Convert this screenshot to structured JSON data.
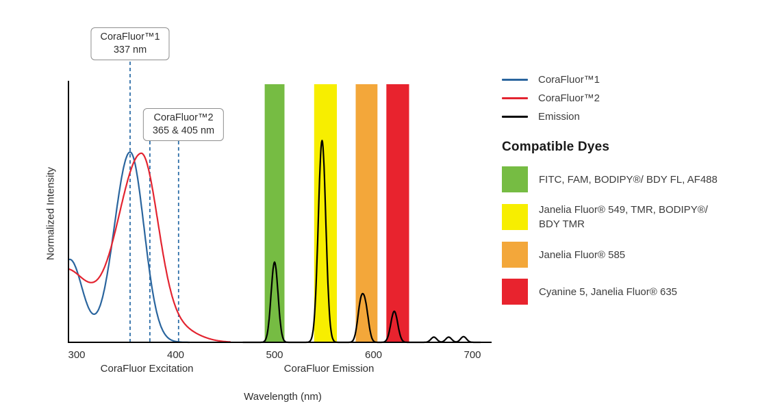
{
  "colors": {
    "corafluor1_blue": "#2a659e",
    "corafluor2_red": "#e32430",
    "emission_black": "#000000",
    "band_green": "#76bc43",
    "band_yellow": "#f7ee00",
    "band_orange": "#f3a73a",
    "band_red": "#e8232e",
    "marker_dash_blue": "#2d6ea8"
  },
  "chart_data": {
    "type": "line",
    "title": "",
    "xlabel": "Wavelength (nm)",
    "ylabel": "Normalized Intensity",
    "x_ticks": [
      300,
      400,
      500,
      600,
      700
    ],
    "x_range_nm": [
      292,
      719
    ],
    "ylim": [
      0,
      1
    ],
    "grid": false,
    "section_labels": [
      {
        "text": "CoraFluor Excitation",
        "center_nm": 371
      },
      {
        "text": "CoraFluor Emission",
        "center_nm": 555
      }
    ],
    "callouts": [
      {
        "lines": [
          "CoraFluor™1",
          "337 nm"
        ]
      },
      {
        "lines": [
          "CoraFluor™2",
          "365 & 405 nm"
        ]
      }
    ],
    "excitation_markers_nm": [
      354,
      374,
      403
    ],
    "filter_bands": [
      {
        "name": "green",
        "from_nm": 490,
        "to_nm": 510,
        "color_key": "band_green"
      },
      {
        "name": "yellow",
        "from_nm": 540,
        "to_nm": 563,
        "color_key": "band_yellow"
      },
      {
        "name": "orange",
        "from_nm": 582,
        "to_nm": 604,
        "color_key": "band_orange"
      },
      {
        "name": "red",
        "from_nm": 613,
        "to_nm": 636,
        "color_key": "band_red"
      }
    ],
    "series": [
      {
        "name": "CoraFluor™1 excitation",
        "color_key": "corafluor1_blue",
        "draw_range_nm": [
          292,
          414
        ],
        "peaks": [
          {
            "nm": 354,
            "intensity": 0.74
          }
        ],
        "components": [
          {
            "c": 293,
            "a": 0.32,
            "s": 13
          },
          {
            "c": 354,
            "a": 0.735,
            "sl": 16,
            "sr": 14
          }
        ]
      },
      {
        "name": "CoraFluor™2 excitation",
        "color_key": "corafluor2_red",
        "draw_range_nm": [
          292,
          455
        ],
        "peaks": [
          {
            "nm": 365,
            "intensity": 0.72
          }
        ],
        "components": [
          {
            "c": 288,
            "a": 0.28,
            "s": 24
          },
          {
            "c": 365,
            "a": 0.72,
            "sl": 24,
            "sr": 17
          },
          {
            "c": 402,
            "a": 0.05,
            "s": 20
          }
        ]
      },
      {
        "name": "Emission",
        "color_key": "emission_black",
        "draw_range_nm": [
          468,
          708
        ],
        "peaks": [
          {
            "nm": 500,
            "intensity": 0.31
          },
          {
            "nm": 548,
            "intensity": 0.78
          },
          {
            "nm": 590,
            "intensity": 0.19
          },
          {
            "nm": 621,
            "intensity": 0.12
          }
        ],
        "components": [
          {
            "c": 500,
            "a": 0.31,
            "s": 3.5
          },
          {
            "c": 548,
            "a": 0.78,
            "s": 3.8
          },
          {
            "c": 587,
            "a": 0.135,
            "s": 3.2
          },
          {
            "c": 592,
            "a": 0.12,
            "s": 3.2
          },
          {
            "c": 621,
            "a": 0.12,
            "s": 3.5
          },
          {
            "c": 661,
            "a": 0.02,
            "s": 3
          },
          {
            "c": 676,
            "a": 0.02,
            "s": 3
          },
          {
            "c": 691,
            "a": 0.022,
            "s": 3
          }
        ]
      }
    ]
  },
  "legend": {
    "series": [
      {
        "label": "CoraFluor™1",
        "color_key": "corafluor1_blue"
      },
      {
        "label": "CoraFluor™2",
        "color_key": "corafluor2_red"
      },
      {
        "label": "Emission",
        "color_key": "emission_black"
      }
    ],
    "dyes_heading": "Compatible Dyes",
    "dyes": [
      {
        "label": "FITC, FAM, BODIPY®/ BDY FL, AF488",
        "color_key": "band_green"
      },
      {
        "label": "Janelia Fluor® 549, TMR, BODIPY®/ BDY TMR",
        "color_key": "band_yellow"
      },
      {
        "label": "Janelia Fluor® 585",
        "color_key": "band_orange"
      },
      {
        "label": "Cyanine 5, Janelia Fluor® 635",
        "color_key": "band_red"
      }
    ]
  }
}
